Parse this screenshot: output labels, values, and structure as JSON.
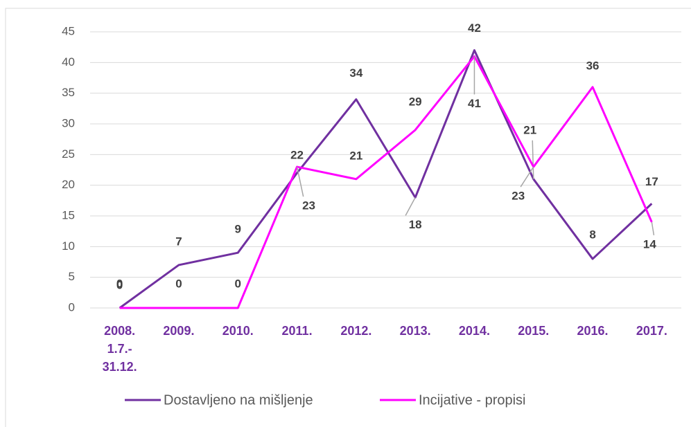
{
  "chart_data": {
    "type": "line",
    "categories": [
      "2008. 1.7.- 31.12.",
      "2009.",
      "2010.",
      "2011.",
      "2012.",
      "2013.",
      "2014.",
      "2015.",
      "2016.",
      "2017."
    ],
    "series": [
      {
        "name": "Dostavljeno na mišljenje",
        "color": "#7030a0",
        "values": [
          0,
          7,
          9,
          22,
          34,
          18,
          42,
          21,
          8,
          17
        ]
      },
      {
        "name": "Incijative - propisi",
        "color": "#ff00ff",
        "values": [
          0,
          0,
          0,
          23,
          21,
          29,
          41,
          23,
          36,
          14
        ]
      }
    ],
    "ylim": [
      0,
      45
    ],
    "yticks": [
      0,
      5,
      10,
      15,
      20,
      25,
      30,
      35,
      40,
      45
    ],
    "grid": true,
    "legend": "bottom"
  }
}
